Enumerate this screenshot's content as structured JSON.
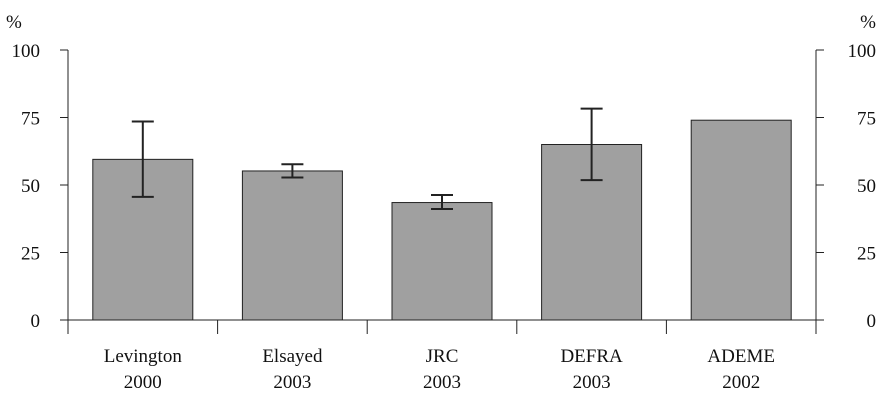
{
  "chart_data": {
    "type": "bar",
    "title": "",
    "xlabel": "",
    "ylabel": "%",
    "ylabel_right": "%",
    "ylim": [
      0,
      100
    ],
    "yticks": [
      "0",
      "25",
      "50",
      "75",
      "100"
    ],
    "ytick_values": [
      0,
      25,
      50,
      75,
      100
    ],
    "categories": [
      {
        "line1": "Levington",
        "line2": "2000"
      },
      {
        "line1": "Elsayed",
        "line2": "2003"
      },
      {
        "line1": "JRC",
        "line2": "2003"
      },
      {
        "line1": "DEFRA",
        "line2": "2003"
      },
      {
        "line1": "ADEME",
        "line2": "2002"
      }
    ],
    "values": [
      59.5,
      55.2,
      43.5,
      65,
      74
    ],
    "error_low": [
      45.6,
      52.8,
      41.1,
      51.8,
      null
    ],
    "error_high": [
      73.5,
      57.7,
      46.3,
      78.3,
      null
    ],
    "grid": false,
    "colors": {
      "bar": "#a0a0a0",
      "edge": "#222222"
    }
  }
}
